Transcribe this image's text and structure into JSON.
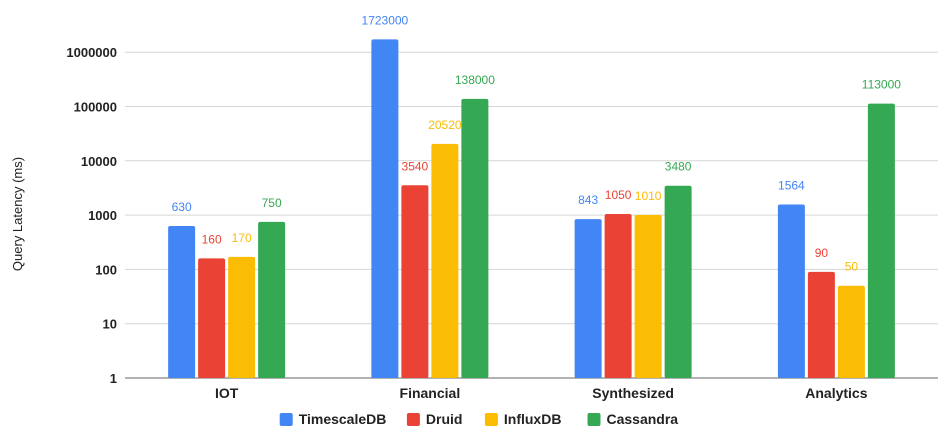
{
  "chart_data": {
    "type": "bar",
    "scale": "log",
    "ylabel": "Query Latency (ms)",
    "xlabel": "",
    "title": "",
    "ylim": [
      1,
      1723000
    ],
    "y_ticks": [
      "1",
      "10",
      "100",
      "1000",
      "10000",
      "100000",
      "1000000"
    ],
    "y_tick_values": [
      1,
      10,
      100,
      1000,
      10000,
      100000,
      1000000
    ],
    "grid": true,
    "legend_position": "bottom",
    "categories": [
      "IOT",
      "Financial",
      "Synthesized",
      "Analytics"
    ],
    "series": [
      {
        "name": "TimescaleDB",
        "color": "#4285F4",
        "values": [
          630,
          1723000,
          843,
          1564
        ]
      },
      {
        "name": "Druid",
        "color": "#EA4335",
        "values": [
          160,
          3540,
          1050,
          90
        ]
      },
      {
        "name": "InfluxDB",
        "color": "#FBBC04",
        "values": [
          170,
          20520,
          1010,
          50
        ]
      },
      {
        "name": "Cassandra",
        "color": "#34A853",
        "values": [
          750,
          138000,
          3480,
          113000
        ]
      }
    ]
  }
}
